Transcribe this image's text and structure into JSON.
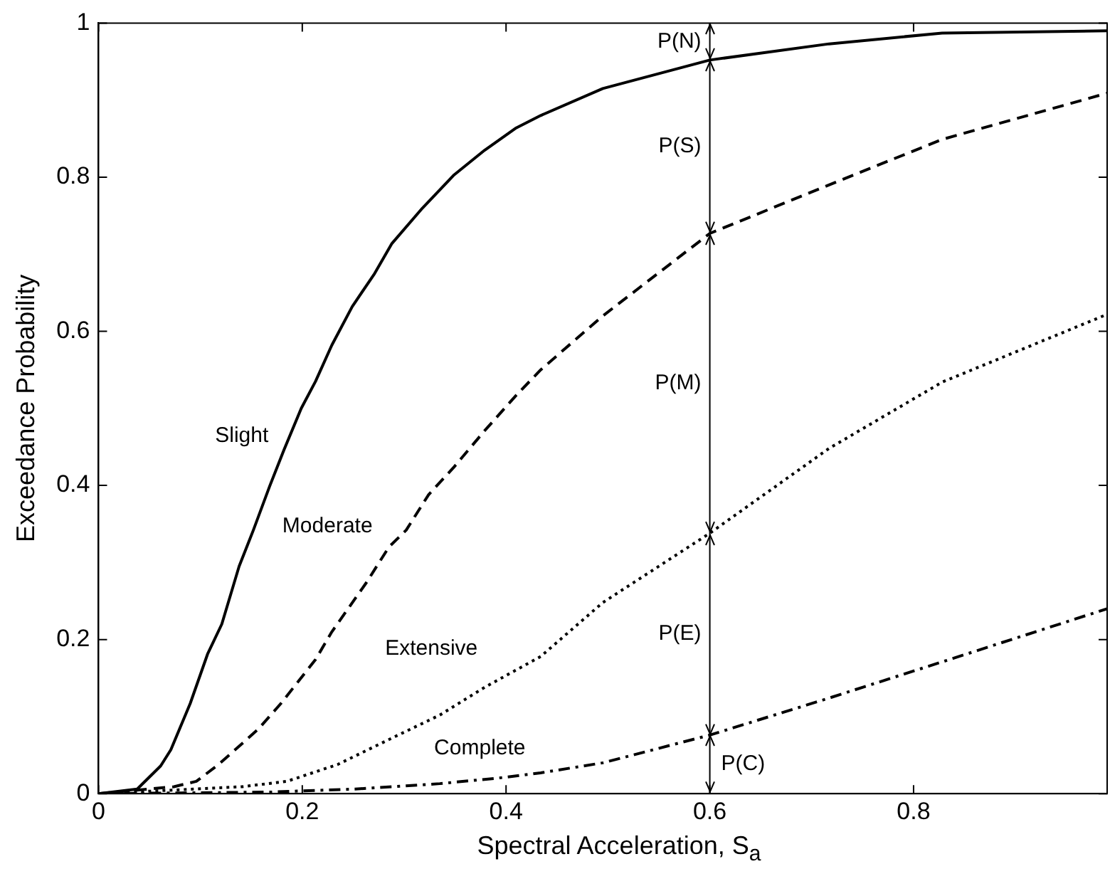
{
  "chart_data": {
    "type": "line",
    "xlabel": "Spectral Acceleration, S$_{a}$",
    "ylabel": "Exceedance Probability",
    "xlim": [
      0,
      0.99
    ],
    "xticks": [
      0,
      0.2,
      0.4,
      0.6,
      0.8
    ],
    "ylim": [
      0,
      1
    ],
    "yticks": [
      0,
      0.2,
      0.4,
      0.6,
      0.8,
      1
    ],
    "grid": false,
    "legend": false,
    "marker": "none",
    "series": [
      {
        "name": "Slight",
        "color": "#000000",
        "line_style": "solid",
        "x": [
          0,
          0.038,
          0.061,
          0.071,
          0.09,
          0.107,
          0.121,
          0.138,
          0.152,
          0.168,
          0.182,
          0.199,
          0.213,
          0.229,
          0.249,
          0.271,
          0.288,
          0.318,
          0.349,
          0.379,
          0.41,
          0.434,
          0.495,
          0.6,
          0.717,
          0.828,
          0.99
        ],
        "values": [
          0,
          0.006,
          0.036,
          0.057,
          0.117,
          0.181,
          0.22,
          0.295,
          0.342,
          0.399,
          0.446,
          0.5,
          0.535,
          0.582,
          0.632,
          0.675,
          0.714,
          0.76,
          0.803,
          0.835,
          0.864,
          0.88,
          0.915,
          0.952,
          0.973,
          0.987,
          0.99
        ]
      },
      {
        "name": "Moderate",
        "color": "#000000",
        "line_style": "dashed",
        "x": [
          0,
          0.074,
          0.096,
          0.118,
          0.157,
          0.179,
          0.213,
          0.229,
          0.263,
          0.285,
          0.302,
          0.324,
          0.349,
          0.379,
          0.41,
          0.434,
          0.495,
          0.6,
          0.717,
          0.828,
          0.99
        ],
        "values": [
          0,
          0.009,
          0.016,
          0.038,
          0.084,
          0.117,
          0.174,
          0.21,
          0.274,
          0.32,
          0.342,
          0.388,
          0.424,
          0.471,
          0.517,
          0.55,
          0.62,
          0.727,
          0.79,
          0.849,
          0.909
        ]
      },
      {
        "name": "Extensive",
        "color": "#000000",
        "line_style": "dotted",
        "x": [
          0,
          0.141,
          0.185,
          0.235,
          0.291,
          0.335,
          0.379,
          0.434,
          0.495,
          0.6,
          0.717,
          0.828,
          0.99
        ],
        "values": [
          0,
          0.009,
          0.016,
          0.038,
          0.074,
          0.102,
          0.138,
          0.178,
          0.248,
          0.338,
          0.448,
          0.534,
          0.622
        ]
      },
      {
        "name": "Complete",
        "color": "#000000",
        "line_style": "dashdot",
        "x": [
          0,
          0.168,
          0.252,
          0.335,
          0.391,
          0.434,
          0.495,
          0.6,
          0.717,
          0.828,
          0.99
        ],
        "values": [
          0,
          0.002,
          0.006,
          0.013,
          0.02,
          0.027,
          0.04,
          0.076,
          0.124,
          0.171,
          0.24
        ]
      }
    ],
    "ref_lines": [
      {
        "axis": "x",
        "value": 0.6,
        "color": "#000000",
        "line_style": "solid"
      }
    ],
    "annotations": [
      "P(N)",
      "P(S)",
      "P(M)",
      "P(E)",
      "P(C)"
    ]
  }
}
